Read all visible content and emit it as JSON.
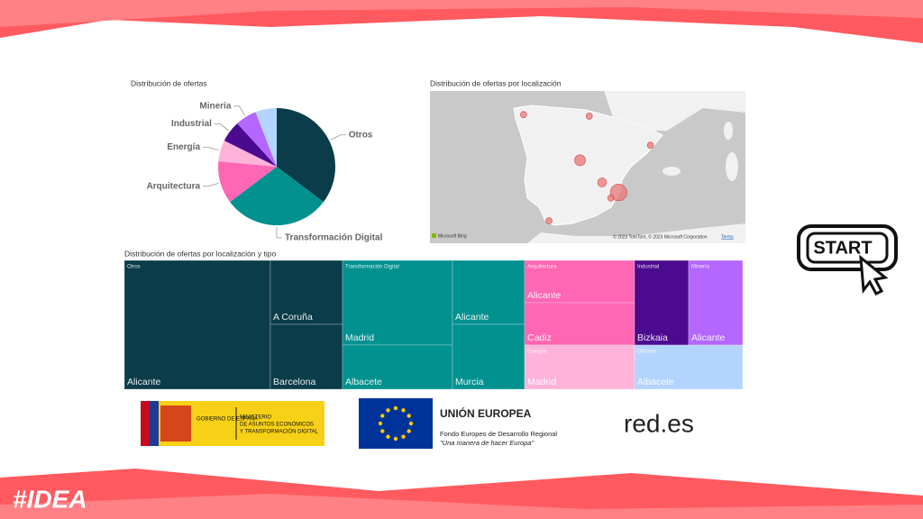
{
  "banner": {
    "logo": "#IDEA"
  },
  "start_button": {
    "label": "START"
  },
  "chart_data": [
    {
      "type": "pie",
      "title": "Distribución de ofertas",
      "categories": [
        "Otros",
        "Transformación Digital",
        "Arquitectura",
        "Energía",
        "Industrial",
        "Minería",
        null
      ],
      "values": [
        6,
        5,
        2,
        1,
        1,
        1,
        1
      ],
      "colors": [
        "#0b3c49",
        "#01918f",
        "#ff66b3",
        "#ffb3d9",
        "#4b0a8f",
        "#b566ff",
        "#b3d4ff"
      ]
    },
    {
      "type": "map",
      "title": "Distribución de ofertas por localización",
      "lon": [
        -8.41,
        -2.93,
        2.17,
        -3.7,
        -1.86,
        -0.48,
        -1.13,
        -6.29
      ],
      "lat": [
        43.36,
        43.26,
        41.39,
        40.42,
        38.99,
        38.35,
        37.99,
        36.53
      ],
      "values": [
        1,
        1,
        1,
        3,
        2,
        7,
        1,
        1
      ],
      "color": "#e87676",
      "logo_text": "Microsoft Bing",
      "attribution": "© 2023 TomTom, © 2023 Microsoft Corporation",
      "terms": "Terms"
    },
    {
      "type": "treemap",
      "title": "Distribución de ofertas por localización y tipo",
      "groups": [
        {
          "name": "Otros",
          "color": "#0b3c49",
          "labels": [
            "Alicante",
            "A Coruña",
            "Barcelona"
          ],
          "values": [
            4,
            1,
            1
          ]
        },
        {
          "name": "Transformación Digital",
          "color": "#01918f",
          "labels": [
            "Madrid",
            "Albacete",
            "Alicante",
            "Murcia"
          ],
          "values": [
            2,
            1,
            1,
            1
          ]
        },
        {
          "name": "Arquitectura",
          "color": "#ff66b3",
          "labels": [
            "Alicante",
            "Cadiz"
          ],
          "values": [
            1,
            1
          ]
        },
        {
          "name": "Energía",
          "color": "#ffb3d9",
          "labels": [
            "Madrid"
          ],
          "values": [
            1
          ]
        },
        {
          "name": "Industrial",
          "color": "#4b0a8f",
          "labels": [
            "Bizkaia"
          ],
          "values": [
            1
          ]
        },
        {
          "name": "Minería",
          "color": "#b566ff",
          "labels": [
            "Alicante"
          ],
          "values": [
            1
          ]
        },
        {
          "name": "Oficinas",
          "color": "#b3d4ff",
          "labels": [
            "Albacete"
          ],
          "values": [
            1
          ]
        }
      ]
    }
  ],
  "logos": {
    "gobierno": "GOBIERNO DE ESPAÑA",
    "ministerio": [
      "MINISTERIO",
      "DE ASUNTOS ECONÓMICOS",
      "Y TRANSFORMACIÓN DIGITAL"
    ],
    "ue": "UNIÓN EUROPEA",
    "fondo": "Fondo Europeo de Desarrollo Regional",
    "lema": "\"Una manera de hacer Europa\"",
    "redes": "red.es"
  }
}
